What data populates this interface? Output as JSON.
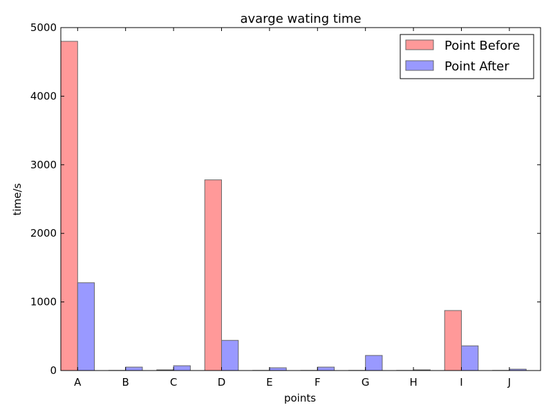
{
  "chart_data": {
    "type": "bar",
    "title": "avarge wating time",
    "xlabel": "points",
    "ylabel": "time/s",
    "categories": [
      "A",
      "B",
      "C",
      "D",
      "E",
      "F",
      "G",
      "H",
      "I",
      "J"
    ],
    "ylim": [
      0,
      5000
    ],
    "yticks": [
      "0",
      "1000",
      "2000",
      "3000",
      "4000",
      "5000"
    ],
    "grid": false,
    "legend_position": "top-right",
    "series": [
      {
        "name": "Point Before",
        "color": "#ff9999",
        "values": [
          4800,
          2,
          10,
          2780,
          2,
          2,
          2,
          2,
          875,
          2
        ]
      },
      {
        "name": "Point After",
        "color": "#9999ff",
        "values": [
          1280,
          50,
          70,
          440,
          40,
          50,
          220,
          10,
          360,
          20
        ]
      }
    ]
  }
}
